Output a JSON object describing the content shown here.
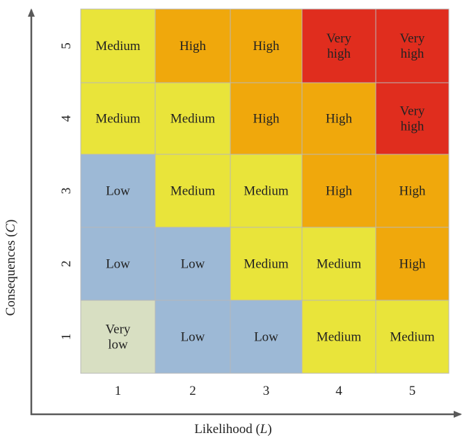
{
  "x_axis": {
    "label_main": "Likelihood (",
    "label_var": "L",
    "label_close": ")",
    "ticks": [
      "1",
      "2",
      "3",
      "4",
      "5"
    ]
  },
  "y_axis": {
    "label_main": "Consequences (",
    "label_var": "C",
    "label_close": ")",
    "ticks": [
      "1",
      "2",
      "3",
      "4",
      "5"
    ]
  },
  "levels": {
    "very_low": {
      "lines": [
        "Very",
        "low"
      ],
      "color": "#d8dfc2"
    },
    "low": {
      "lines": [
        "Low"
      ],
      "color": "#9db9d6"
    },
    "medium": {
      "lines": [
        "Medium"
      ],
      "color": "#e9e43a"
    },
    "high": {
      "lines": [
        "High"
      ],
      "color": "#f0a80c"
    },
    "very_high": {
      "lines": [
        "Very",
        "high"
      ],
      "color": "#e02d1e"
    }
  },
  "grid_rows_top_to_bottom": [
    {
      "consequence": "5",
      "cells": [
        "medium",
        "high",
        "high",
        "very_high",
        "very_high"
      ]
    },
    {
      "consequence": "4",
      "cells": [
        "medium",
        "medium",
        "high",
        "high",
        "very_high"
      ]
    },
    {
      "consequence": "3",
      "cells": [
        "low",
        "medium",
        "medium",
        "high",
        "high"
      ]
    },
    {
      "consequence": "2",
      "cells": [
        "low",
        "low",
        "medium",
        "medium",
        "high"
      ]
    },
    {
      "consequence": "1",
      "cells": [
        "very_low",
        "low",
        "low",
        "medium",
        "medium"
      ]
    }
  ],
  "colors": {
    "axis": "#595959",
    "cell_border": "#b8b8b8",
    "text": "#222222"
  }
}
